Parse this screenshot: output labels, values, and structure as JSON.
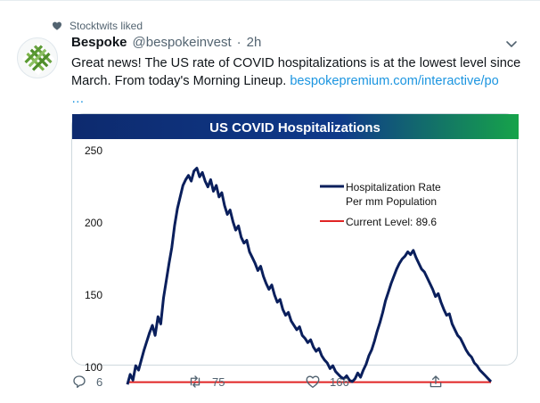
{
  "liked_by": "Stocktwits liked",
  "tweet": {
    "display_name": "Bespoke",
    "handle": "@bespokeinvest",
    "separator": "·",
    "time": "2h",
    "text": "Great news! The US rate of COVID hospitalizations is at the lowest level since March.  From today's Morning Lineup. ",
    "link": "bespokepremium.com/interactive/po",
    "ellipsis": "…",
    "replies": "6",
    "retweets": "75",
    "likes": "166"
  },
  "icons": [
    "heart-icon",
    "avatar-logo",
    "chevron-down-icon",
    "reply-icon",
    "retweet-icon",
    "like-icon",
    "share-icon"
  ],
  "colors": {
    "title_banner_start": "#0d2a6e",
    "title_banner_end": "#16a34a",
    "series_line": "#0a1f5c",
    "current_level_line": "#e02424",
    "link": "#1b95e0",
    "muted": "#536471"
  },
  "chart_data": {
    "type": "line",
    "title": "US COVID Hospitalizations",
    "ylim": [
      90,
      260
    ],
    "yticks": [
      100,
      150,
      200,
      250
    ],
    "legend": {
      "placement": "top-right",
      "series_label_line1": "Hospitalization Rate",
      "series_label_line2": "Per mm Population",
      "level_label": "Current Level: 89.6"
    },
    "current_level": 89.6,
    "series": [
      {
        "name": "Hospitalization Rate Per mm Population",
        "values": [
          88,
          95,
          91,
          101,
          98,
          105,
          112,
          118,
          124,
          129,
          122,
          135,
          130,
          148,
          160,
          172,
          183,
          198,
          210,
          218,
          226,
          230,
          233,
          229,
          236,
          238,
          232,
          235,
          229,
          225,
          230,
          222,
          226,
          218,
          221,
          212,
          206,
          209,
          201,
          195,
          198,
          190,
          186,
          188,
          180,
          176,
          172,
          167,
          170,
          163,
          158,
          154,
          157,
          150,
          145,
          147,
          140,
          136,
          138,
          132,
          129,
          126,
          128,
          122,
          120,
          117,
          119,
          114,
          111,
          113,
          108,
          105,
          103,
          99,
          101,
          97,
          95,
          93,
          92,
          94,
          91,
          90,
          92,
          96,
          93,
          98,
          102,
          108,
          112,
          118,
          125,
          131,
          138,
          146,
          152,
          158,
          163,
          168,
          172,
          175,
          177,
          180,
          178,
          181,
          176,
          172,
          168,
          166,
          162,
          158,
          154,
          149,
          151,
          145,
          140,
          136,
          137,
          130,
          126,
          122,
          120,
          116,
          112,
          109,
          107,
          103,
          101,
          98,
          96,
          94,
          92,
          90
        ]
      }
    ]
  }
}
